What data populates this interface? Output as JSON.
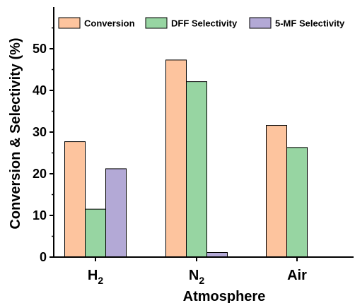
{
  "chart_data": {
    "type": "bar",
    "categories": [
      "H2",
      "N2",
      "Air"
    ],
    "category_labels": [
      {
        "base": "H",
        "sub": "2"
      },
      {
        "base": "N",
        "sub": "2"
      },
      {
        "base": "Air",
        "sub": ""
      }
    ],
    "series": [
      {
        "name": "Conversion",
        "color": "#FDC49E",
        "values": [
          27.7,
          47.3,
          31.6
        ]
      },
      {
        "name": "DFF Selectivity",
        "color": "#97D5A2",
        "values": [
          11.5,
          42.1,
          26.3
        ]
      },
      {
        "name": "5-MF Selectivity",
        "color": "#B3A9D6",
        "values": [
          21.2,
          1.1,
          0
        ]
      }
    ],
    "xlabel": "Atmosphere",
    "ylabel": "Conversion & Selectivity (%)",
    "ylim": [
      0,
      60
    ],
    "yticks": [
      0,
      10,
      20,
      30,
      40,
      50
    ],
    "legend_position": "top",
    "grid": false
  }
}
